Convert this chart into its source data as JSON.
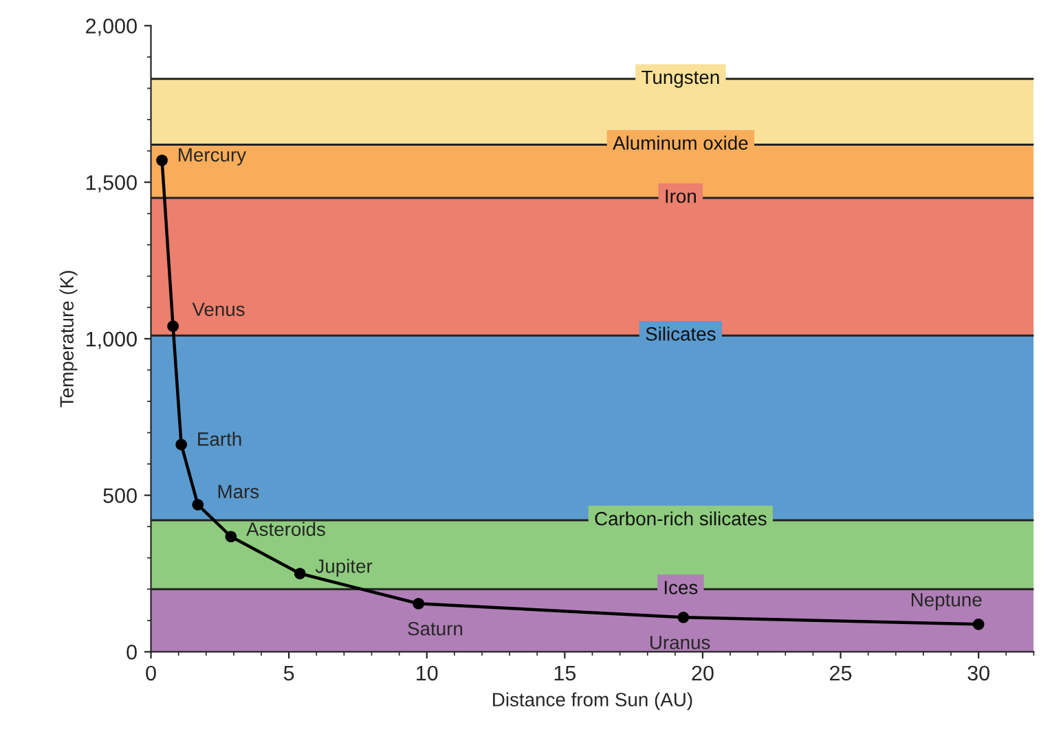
{
  "chart_data": {
    "type": "line",
    "xlabel": "Distance from Sun (AU)",
    "ylabel": "Temperature (K)",
    "x": [
      0.4,
      0.8,
      1.1,
      1.7,
      2.9,
      5.4,
      9.7,
      19.3,
      30
    ],
    "series": [
      {
        "color": "#000000",
        "values": [
          1570,
          1040,
          662,
          470,
          368,
          250,
          154,
          110,
          88
        ]
      }
    ],
    "marker": "circle",
    "line_style": "solid",
    "grid": false,
    "legend": false,
    "xlim": [
      0,
      32
    ],
    "ylim": [
      0,
      2000
    ],
    "xticks": [
      0,
      5,
      10,
      15,
      20,
      25,
      30
    ],
    "yticks": [
      0,
      {
        "value": 500,
        "label": "500"
      },
      {
        "value": 1000,
        "label": "1,000"
      },
      {
        "value": 1500,
        "label": "1,500"
      },
      {
        "value": 2000,
        "label": "2,000"
      }
    ],
    "bands": [
      {
        "axis": "y",
        "from": 1620,
        "to": 1830,
        "color": "#f9e19a"
      },
      {
        "axis": "y",
        "from": 1450,
        "to": 1620,
        "color": "#f9ad5a"
      },
      {
        "axis": "y",
        "from": 1010,
        "to": 1450,
        "color": "#ec7f6d"
      },
      {
        "axis": "y",
        "from": 420,
        "to": 1010,
        "color": "#5b9bd0"
      },
      {
        "axis": "y",
        "from": 200,
        "to": 420,
        "color": "#8fcc7f"
      },
      {
        "axis": "y",
        "from": 0,
        "to": 200,
        "color": "#b07fb7"
      }
    ],
    "ref_lines": [
      {
        "axis": "y",
        "value": 1830,
        "label": "Tungsten"
      },
      {
        "axis": "y",
        "value": 1620,
        "label": "Aluminum oxide"
      },
      {
        "axis": "y",
        "value": 1450,
        "label": "Iron"
      },
      {
        "axis": "y",
        "value": 1010,
        "label": "Silicates"
      },
      {
        "axis": "y",
        "value": 420,
        "label": "Carbon-rich silicates"
      },
      {
        "axis": "y",
        "value": 200,
        "label": "Ices"
      }
    ],
    "annotations": [
      {
        "text": "Mercury",
        "x": 0.4,
        "y": 1570
      },
      {
        "text": "Venus",
        "x": 0.8,
        "y": 1040
      },
      {
        "text": "Earth",
        "x": 1.1,
        "y": 662
      },
      {
        "text": "Mars",
        "x": 1.7,
        "y": 470
      },
      {
        "text": "Asteroids",
        "x": 2.9,
        "y": 368
      },
      {
        "text": "Jupiter",
        "x": 5.4,
        "y": 250
      },
      {
        "text": "Saturn",
        "x": 9.7,
        "y": 154
      },
      {
        "text": "Uranus",
        "x": 19.3,
        "y": 110
      },
      {
        "text": "Neptune",
        "x": 30,
        "y": 88
      }
    ]
  }
}
